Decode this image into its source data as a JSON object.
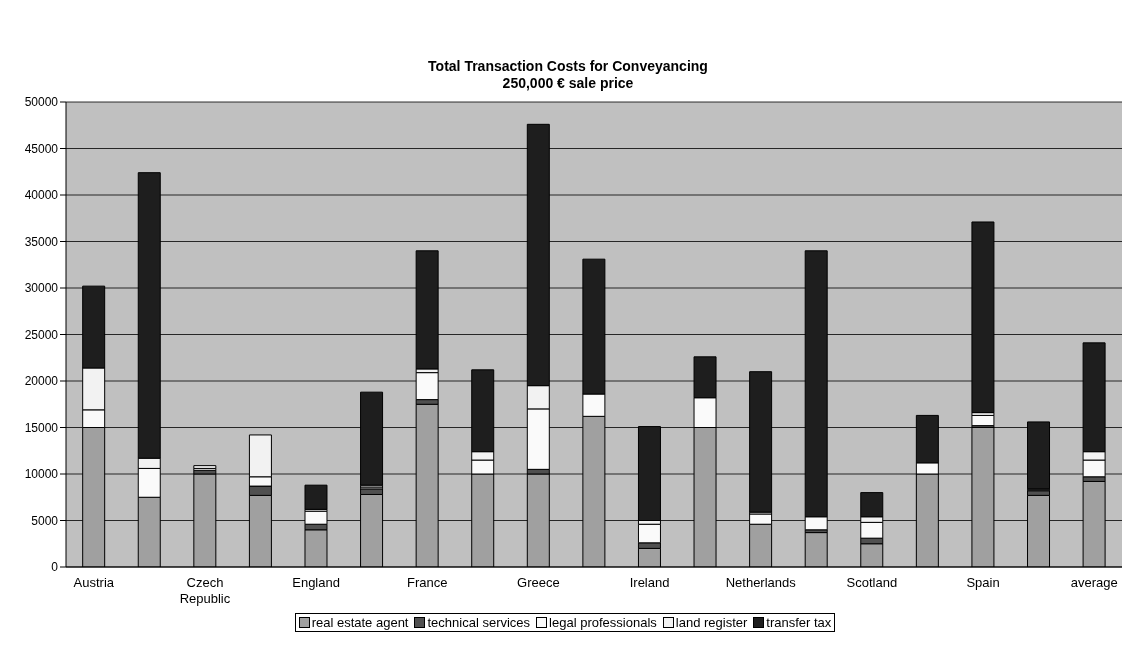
{
  "chart_data": {
    "type": "bar",
    "title": "Total Transaction Costs for Conveyancing",
    "subtitle": "250,000 € sale price",
    "categories": [
      "Austria",
      null,
      "Czech Republic",
      null,
      "England",
      null,
      "France",
      null,
      "Greece",
      null,
      "Ireland",
      null,
      "Netherlands",
      null,
      "Scotland",
      null,
      "Spain",
      null,
      "average"
    ],
    "stacked": true,
    "series": [
      {
        "name": "real estate agent",
        "color": "#a0a0a0",
        "values": [
          15000,
          7500,
          10000,
          7700,
          4000,
          7800,
          17500,
          10000,
          10000,
          16200,
          2000,
          15000,
          4600,
          3700,
          2500,
          10000,
          15000,
          7700,
          9200
        ]
      },
      {
        "name": "technical services",
        "color": "#505050",
        "values": [
          0,
          0,
          400,
          1000,
          600,
          600,
          500,
          0,
          500,
          0,
          600,
          0,
          0,
          300,
          600,
          0,
          200,
          500,
          500
        ]
      },
      {
        "name": "legal professionals",
        "color": "#fafafa",
        "values": [
          1900,
          3100,
          200,
          1000,
          1400,
          200,
          2900,
          1500,
          6500,
          2400,
          2000,
          3200,
          1100,
          1400,
          1700,
          1200,
          1100,
          100,
          1800
        ]
      },
      {
        "name": "land register",
        "color": "#f2f2f2",
        "values": [
          4500,
          1100,
          300,
          4500,
          200,
          200,
          400,
          900,
          2500,
          0,
          400,
          0,
          200,
          0,
          600,
          0,
          300,
          100,
          900
        ]
      },
      {
        "name": "transfer tax",
        "color": "#1e1e1e",
        "values": [
          8800,
          30700,
          0,
          0,
          2600,
          10000,
          12700,
          8800,
          28100,
          14500,
          10100,
          4400,
          15100,
          28600,
          2600,
          5100,
          20500,
          7200,
          11700
        ]
      }
    ],
    "ylim": [
      0,
      50000
    ],
    "yticks": [
      0,
      5000,
      10000,
      15000,
      20000,
      25000,
      30000,
      35000,
      40000,
      45000,
      50000
    ],
    "grid": "y",
    "legend": "bottom"
  }
}
